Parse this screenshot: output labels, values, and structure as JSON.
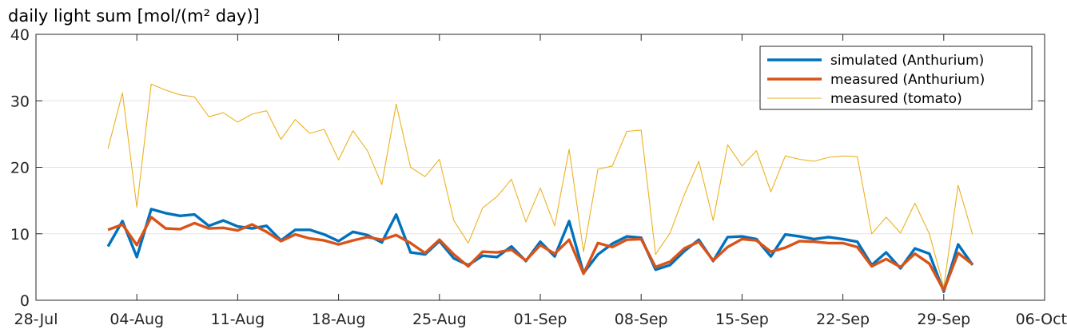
{
  "chart_data": {
    "type": "line",
    "title": "daily light sum [mol/(m² day)]",
    "xlabel": "",
    "ylabel": "",
    "ylim": [
      0,
      40
    ],
    "yticks": [
      0,
      10,
      20,
      30,
      40
    ],
    "xlim": [
      "2023-07-28",
      "2023-10-06"
    ],
    "xticks": [
      {
        "date": "2023-07-28",
        "label": "28-Jul"
      },
      {
        "date": "2023-08-04",
        "label": "04-Aug"
      },
      {
        "date": "2023-08-11",
        "label": "11-Aug"
      },
      {
        "date": "2023-08-18",
        "label": "18-Aug"
      },
      {
        "date": "2023-08-25",
        "label": "25-Aug"
      },
      {
        "date": "2023-09-01",
        "label": "01-Sep"
      },
      {
        "date": "2023-09-08",
        "label": "08-Sep"
      },
      {
        "date": "2023-09-15",
        "label": "15-Sep"
      },
      {
        "date": "2023-09-22",
        "label": "22-Sep"
      },
      {
        "date": "2023-09-29",
        "label": "29-Sep"
      },
      {
        "date": "2023-10-06",
        "label": "06-Oct"
      }
    ],
    "grid": "horizontal",
    "legend_position": "top-right",
    "x": [
      "2023-08-02",
      "2023-08-03",
      "2023-08-04",
      "2023-08-05",
      "2023-08-06",
      "2023-08-07",
      "2023-08-08",
      "2023-08-09",
      "2023-08-10",
      "2023-08-11",
      "2023-08-12",
      "2023-08-13",
      "2023-08-14",
      "2023-08-15",
      "2023-08-16",
      "2023-08-17",
      "2023-08-18",
      "2023-08-19",
      "2023-08-20",
      "2023-08-21",
      "2023-08-22",
      "2023-08-23",
      "2023-08-24",
      "2023-08-25",
      "2023-08-26",
      "2023-08-27",
      "2023-08-28",
      "2023-08-29",
      "2023-08-30",
      "2023-08-31",
      "2023-09-01",
      "2023-09-02",
      "2023-09-03",
      "2023-09-04",
      "2023-09-05",
      "2023-09-06",
      "2023-09-07",
      "2023-09-08",
      "2023-09-09",
      "2023-09-10",
      "2023-09-11",
      "2023-09-12",
      "2023-09-13",
      "2023-09-14",
      "2023-09-15",
      "2023-09-16",
      "2023-09-17",
      "2023-09-18",
      "2023-09-19",
      "2023-09-20",
      "2023-09-21",
      "2023-09-22",
      "2023-09-23",
      "2023-09-24",
      "2023-09-25",
      "2023-09-26",
      "2023-09-27",
      "2023-09-28",
      "2023-09-29",
      "2023-09-30",
      "2023-10-01"
    ],
    "series": [
      {
        "name": "measured (tomato)",
        "color": "#EDB120",
        "line_width": "thin",
        "values": [
          22.8,
          31.2,
          14.0,
          32.5,
          31.6,
          30.9,
          30.6,
          27.6,
          28.2,
          26.8,
          28.0,
          28.5,
          24.2,
          27.2,
          25.1,
          25.7,
          21.1,
          25.5,
          22.5,
          17.4,
          29.5,
          20.0,
          18.6,
          21.2,
          12.0,
          8.6,
          13.9,
          15.6,
          18.2,
          11.8,
          16.9,
          11.2,
          22.7,
          7.3,
          19.7,
          20.2,
          25.4,
          25.6,
          6.9,
          10.1,
          15.9,
          20.9,
          12.0,
          23.4,
          20.2,
          22.5,
          16.3,
          21.7,
          21.2,
          20.9,
          21.5,
          21.7,
          21.6,
          10.0,
          12.5,
          10.1,
          14.6,
          10.0,
          2.0,
          17.3,
          9.9
        ]
      },
      {
        "name": "simulated (Anthurium)",
        "color": "#0072BD",
        "line_width": "thick",
        "values": [
          8.1,
          11.9,
          6.5,
          13.7,
          13.1,
          12.7,
          12.9,
          11.2,
          12.0,
          11.1,
          10.8,
          11.2,
          9.0,
          10.6,
          10.6,
          9.9,
          8.9,
          10.3,
          9.8,
          8.7,
          12.9,
          7.2,
          6.9,
          8.9,
          6.3,
          5.3,
          6.7,
          6.5,
          8.1,
          5.9,
          8.8,
          6.6,
          11.9,
          4.1,
          6.9,
          8.5,
          9.6,
          9.4,
          4.6,
          5.3,
          7.4,
          9.1,
          5.9,
          9.5,
          9.6,
          9.2,
          6.6,
          9.9,
          9.6,
          9.2,
          9.5,
          9.2,
          8.8,
          5.3,
          7.2,
          4.8,
          7.8,
          7.0,
          1.3,
          8.4,
          5.3
        ]
      },
      {
        "name": "measured (Anthurium)",
        "color": "#D95319",
        "line_width": "thick",
        "values": [
          10.6,
          11.4,
          8.3,
          12.5,
          10.8,
          10.7,
          11.6,
          10.8,
          10.9,
          10.5,
          11.4,
          10.3,
          8.9,
          9.9,
          9.3,
          9.0,
          8.4,
          9.0,
          9.5,
          9.1,
          9.8,
          8.6,
          7.1,
          9.1,
          6.9,
          5.1,
          7.3,
          7.2,
          7.6,
          6.0,
          8.3,
          7.0,
          9.1,
          4.0,
          8.6,
          8.0,
          9.1,
          9.2,
          5.0,
          5.8,
          7.8,
          8.8,
          6.0,
          8.0,
          9.2,
          9.0,
          7.3,
          7.9,
          8.9,
          8.8,
          8.6,
          8.6,
          8.0,
          5.1,
          6.2,
          5.0,
          7.0,
          5.5,
          1.5,
          7.1,
          5.4
        ]
      }
    ],
    "legend_order": [
      "simulated (Anthurium)",
      "measured (Anthurium)",
      "measured (tomato)"
    ]
  }
}
